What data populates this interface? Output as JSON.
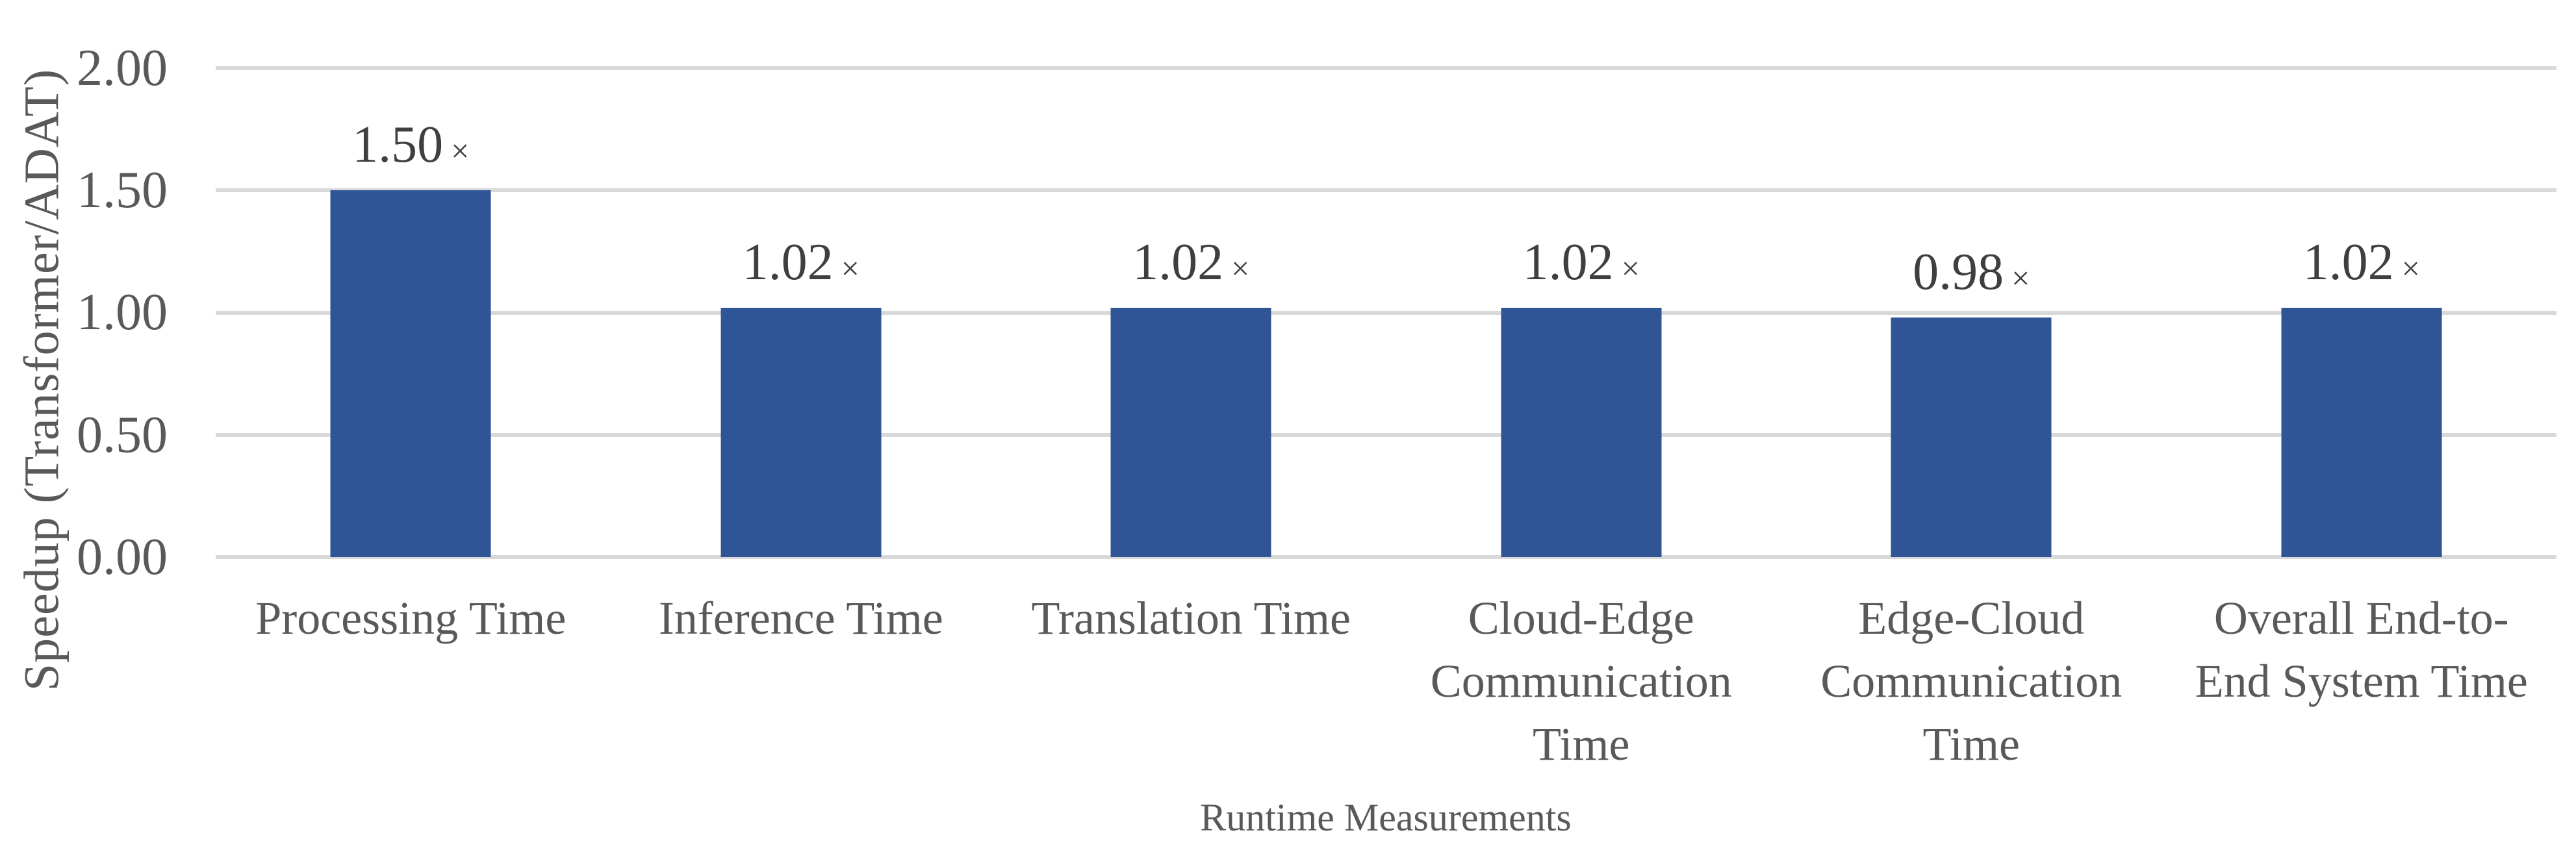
{
  "chart_data": {
    "type": "bar",
    "title": "",
    "xlabel": "Runtime Measurements",
    "ylabel": "Speedup (Transformer/ADAT)",
    "categories": [
      "Processing Time",
      "Inference Time",
      "Translation Time",
      "Cloud-Edge Communication Time",
      "Edge-Cloud Communication Time",
      "Overall End-to-End System Time"
    ],
    "values": [
      1.5,
      1.02,
      1.02,
      1.02,
      0.98,
      1.02
    ],
    "value_labels": [
      "1.50",
      "1.02",
      "1.02",
      "1.02",
      "0.98",
      "1.02"
    ],
    "times_symbol": "×",
    "yticks": [
      "2.00",
      "1.50",
      "1.00",
      "0.50",
      "0.00"
    ],
    "ylim": [
      0,
      2
    ],
    "grid": true,
    "legend": "none",
    "colors": {
      "bar": "#2F5597",
      "gridline": "#D9D9D9",
      "axis_text": "#595959",
      "data_label_text": "#3F3F3F"
    }
  }
}
